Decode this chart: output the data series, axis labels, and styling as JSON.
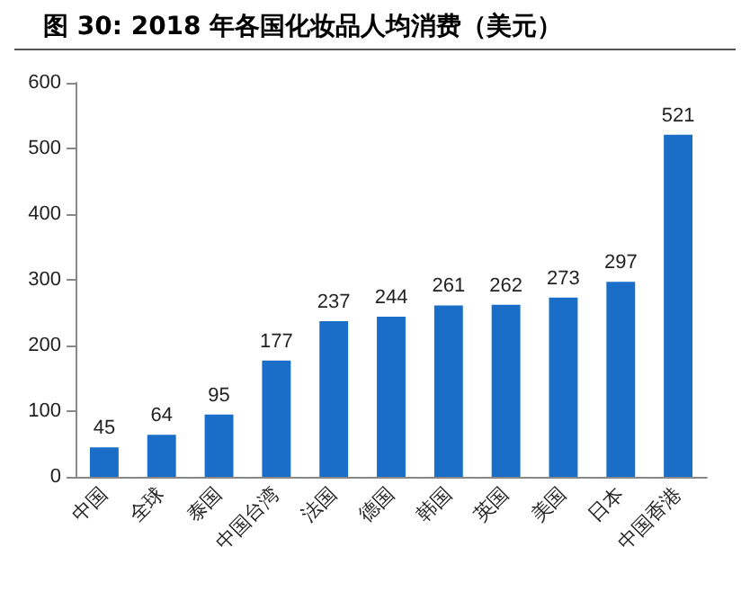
{
  "chart_data": {
    "type": "bar",
    "title": "图 30:  2018 年各国化妆品人均消费（美元）",
    "categories": [
      "中国",
      "全球",
      "泰国",
      "中国台湾",
      "法国",
      "德国",
      "韩国",
      "英国",
      "美国",
      "日本",
      "中国香港"
    ],
    "values": [
      45,
      64,
      95,
      177,
      237,
      244,
      261,
      262,
      273,
      297,
      521
    ],
    "color": "#1a6ec8",
    "ylim": [
      0,
      600
    ],
    "yticks": [
      0,
      100,
      200,
      300,
      400,
      500,
      600
    ],
    "data_labels": true
  }
}
